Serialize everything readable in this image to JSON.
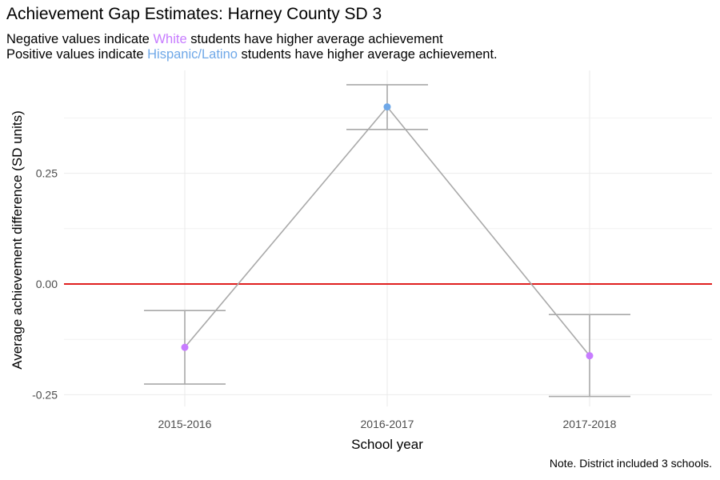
{
  "title": "Achievement Gap Estimates: Harney County SD 3",
  "subtitle": {
    "line1_prefix": "Negative values indicate ",
    "line1_group": "White",
    "line1_suffix": " students have higher average achievement",
    "line2_prefix": "Positive values indicate ",
    "line2_group": "Hispanic/Latino",
    "line2_suffix": " students have higher average achievement."
  },
  "caption": "Note. District included 3 schools.",
  "colors": {
    "white_group": "#c77cff",
    "hispanic_group": "#6fa8e8",
    "zero_line": "#e02020",
    "series_line": "#a9a9a9",
    "grid": "#ebebeb"
  },
  "chart_data": {
    "type": "line",
    "title": "Achievement Gap Estimates: Harney County SD 3",
    "xlabel": "School year",
    "ylabel": "Average achievement difference (SD units)",
    "categories": [
      "2015-2016",
      "2016-2017",
      "2017-2018"
    ],
    "values": [
      -0.143,
      0.4,
      -0.162
    ],
    "error_low": [
      -0.226,
      0.349,
      -0.254
    ],
    "error_high": [
      -0.06,
      0.45,
      -0.069
    ],
    "point_groups": [
      "White",
      "Hispanic/Latino",
      "White"
    ],
    "yticks": [
      -0.25,
      0.0,
      0.25
    ],
    "ytick_labels": [
      "-0.25",
      "0.00",
      "0.25"
    ],
    "ylim": [
      -0.28,
      0.48
    ],
    "reference_line": 0,
    "grid": true,
    "legend": "none"
  }
}
